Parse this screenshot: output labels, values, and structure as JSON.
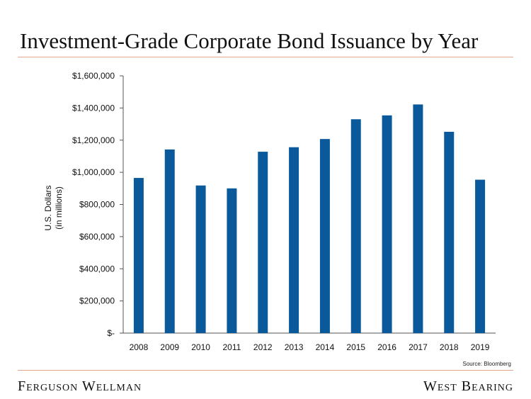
{
  "title": "Investment-Grade Corporate Bond Issuance by Year",
  "source": "Source: Bloomberg",
  "footer": {
    "left_brand": "Ferguson Wellman",
    "right_brand": "West Bearing"
  },
  "colors": {
    "bar": "#0a5a9b",
    "rule": "#e3a98f",
    "axis": "#555555"
  },
  "chart_data": {
    "type": "bar",
    "title": "Investment-Grade Corporate Bond Issuance by Year",
    "ylabel": [
      "U.S. Dollars",
      "(in millions)"
    ],
    "xlabel": "",
    "categories": [
      "2008",
      "2009",
      "2010",
      "2011",
      "2012",
      "2013",
      "2014",
      "2015",
      "2016",
      "2017",
      "2018",
      "2019"
    ],
    "values": [
      965000,
      1142000,
      918000,
      900000,
      1128000,
      1156000,
      1207000,
      1330000,
      1354000,
      1422000,
      1252000,
      954000
    ],
    "ylim": [
      0,
      1600000
    ],
    "yticks": [
      0,
      200000,
      400000,
      600000,
      800000,
      1000000,
      1200000,
      1400000,
      1600000
    ],
    "ytick_labels": [
      "$-",
      "$200,000",
      "$400,000",
      "$600,000",
      "$800,000",
      "$1,000,000",
      "$1,200,000",
      "$1,400,000",
      "$1,600,000"
    ],
    "grid": false,
    "legend": "none"
  }
}
